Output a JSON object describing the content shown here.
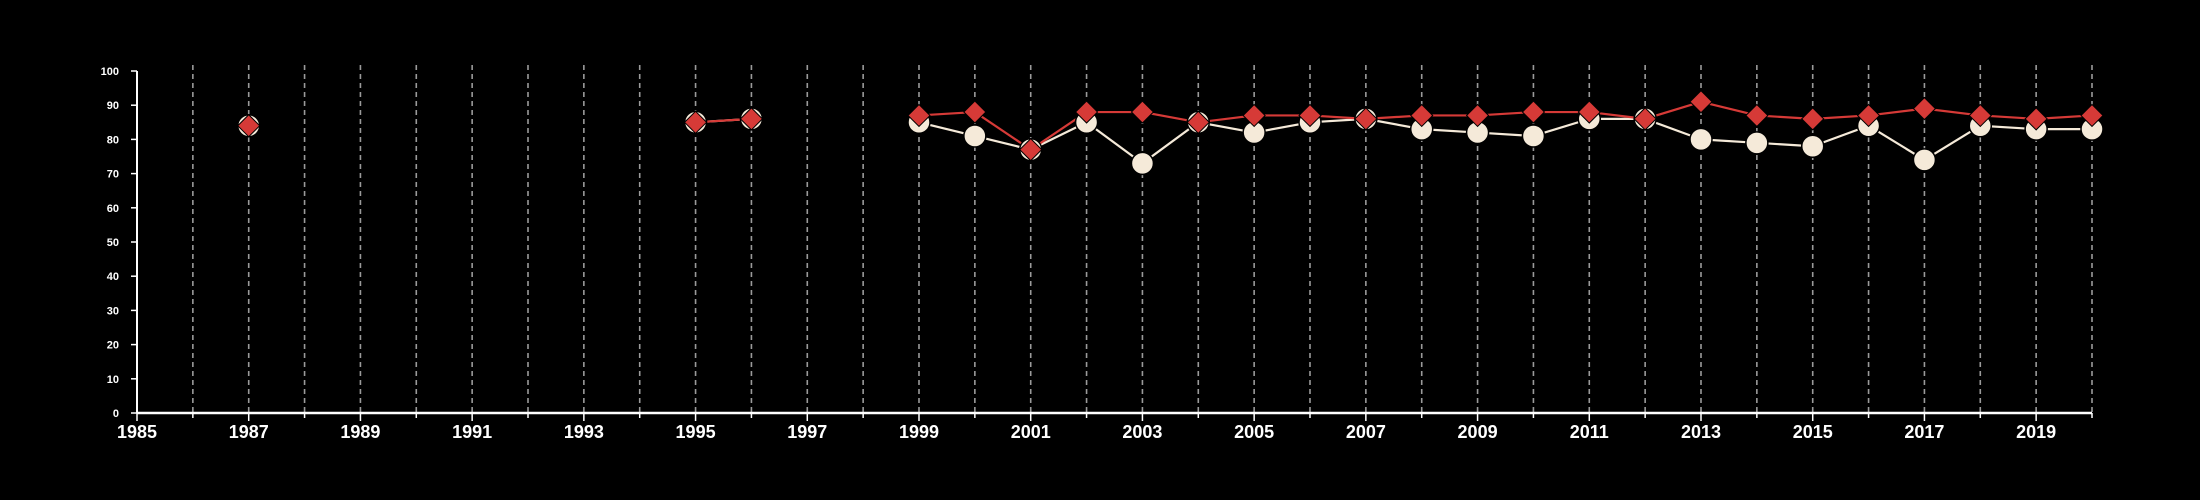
{
  "chart_data": {
    "type": "line",
    "title": "",
    "xlabel": "",
    "ylabel": "",
    "xlim": [
      1985,
      2020
    ],
    "ylim": [
      0,
      100
    ],
    "x_ticks_labeled": [
      "1985",
      "1987",
      "1989",
      "1991",
      "1993",
      "1995",
      "1997",
      "1999",
      "2001",
      "2003",
      "2005",
      "2007",
      "2009",
      "2011",
      "2013",
      "2015",
      "2017",
      "2019"
    ],
    "y_ticks": [
      "0",
      "10",
      "20",
      "30",
      "40",
      "50",
      "60",
      "70",
      "80",
      "90",
      "100"
    ],
    "grid": "vertical-dashed",
    "legend": "none",
    "series": [
      {
        "marker": "circle",
        "color": "#f5ead9",
        "points": [
          {
            "x": 1987,
            "y": 84
          },
          {
            "x": 1995,
            "y": 85
          },
          {
            "x": 1996,
            "y": 86
          },
          {
            "x": 1999,
            "y": 85
          },
          {
            "x": 2000,
            "y": 81
          },
          {
            "x": 2001,
            "y": 77
          },
          {
            "x": 2002,
            "y": 85
          },
          {
            "x": 2003,
            "y": 73
          },
          {
            "x": 2004,
            "y": 85
          },
          {
            "x": 2005,
            "y": 82
          },
          {
            "x": 2006,
            "y": 85
          },
          {
            "x": 2007,
            "y": 86
          },
          {
            "x": 2008,
            "y": 83
          },
          {
            "x": 2009,
            "y": 82
          },
          {
            "x": 2010,
            "y": 81
          },
          {
            "x": 2011,
            "y": 86
          },
          {
            "x": 2012,
            "y": 86
          },
          {
            "x": 2013,
            "y": 80
          },
          {
            "x": 2014,
            "y": 79
          },
          {
            "x": 2015,
            "y": 78
          },
          {
            "x": 2016,
            "y": 84
          },
          {
            "x": 2017,
            "y": 74
          },
          {
            "x": 2018,
            "y": 84
          },
          {
            "x": 2019,
            "y": 83
          },
          {
            "x": 2020,
            "y": 83
          }
        ]
      },
      {
        "marker": "diamond",
        "color": "#d63a37",
        "points": [
          {
            "x": 1987,
            "y": 84
          },
          {
            "x": 1995,
            "y": 85
          },
          {
            "x": 1996,
            "y": 86
          },
          {
            "x": 1999,
            "y": 87
          },
          {
            "x": 2000,
            "y": 88
          },
          {
            "x": 2001,
            "y": 77
          },
          {
            "x": 2002,
            "y": 88
          },
          {
            "x": 2003,
            "y": 88
          },
          {
            "x": 2004,
            "y": 85
          },
          {
            "x": 2005,
            "y": 87
          },
          {
            "x": 2006,
            "y": 87
          },
          {
            "x": 2007,
            "y": 86
          },
          {
            "x": 2008,
            "y": 87
          },
          {
            "x": 2009,
            "y": 87
          },
          {
            "x": 2010,
            "y": 88
          },
          {
            "x": 2011,
            "y": 88
          },
          {
            "x": 2012,
            "y": 86
          },
          {
            "x": 2013,
            "y": 91
          },
          {
            "x": 2014,
            "y": 87
          },
          {
            "x": 2015,
            "y": 86
          },
          {
            "x": 2016,
            "y": 87
          },
          {
            "x": 2017,
            "y": 89
          },
          {
            "x": 2018,
            "y": 87
          },
          {
            "x": 2019,
            "y": 86
          },
          {
            "x": 2020,
            "y": 87
          }
        ]
      }
    ]
  },
  "colors": {
    "background": "#000000",
    "axis": "#ffffff",
    "gridline": "#9a9a9a",
    "text": "#ffffff"
  }
}
